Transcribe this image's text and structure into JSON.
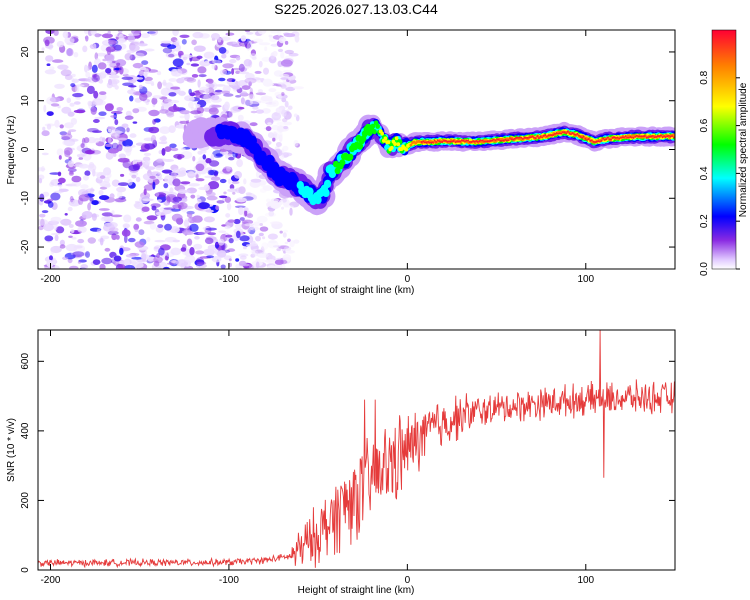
{
  "title": "S225.2026.027.13.03.C44",
  "colors": {
    "snr_line": "#e53b3b",
    "axis": "#000000",
    "background": "#ffffff"
  },
  "chart_data": [
    {
      "type": "heatmap",
      "name": "spectrogram",
      "xlabel": "Height of straight line (km)",
      "ylabel": "Frequency (Hz)",
      "xlim": [
        -207,
        150
      ],
      "ylim": [
        -24.5,
        24.5
      ],
      "x_ticks": [
        -200,
        -100,
        0,
        100
      ],
      "y_ticks": [
        -20,
        -10,
        0,
        10,
        20
      ],
      "colorbar": {
        "label": "Normalized spectral amplitude",
        "range": [
          0,
          1
        ],
        "ticks": [
          "0.0",
          "0.2",
          "0.4",
          "0.6",
          "0.8"
        ],
        "tick_values": [
          0,
          0.2,
          0.4,
          0.6,
          0.8
        ]
      },
      "noise_region_km": [
        -207,
        -65
      ],
      "ridge": [
        {
          "x": -100,
          "y": 3.2
        },
        {
          "x": -90,
          "y": 2.0
        },
        {
          "x": -80,
          "y": -2.0
        },
        {
          "x": -72,
          "y": -5.5
        },
        {
          "x": -65,
          "y": -6.5
        },
        {
          "x": -58,
          "y": -8.0
        },
        {
          "x": -50,
          "y": -10.5
        },
        {
          "x": -46,
          "y": -8.5
        },
        {
          "x": -44,
          "y": -5.0
        },
        {
          "x": -38,
          "y": -3.0
        },
        {
          "x": -32,
          "y": -0.5
        },
        {
          "x": -28,
          "y": 1.0
        },
        {
          "x": -22,
          "y": 3.8
        },
        {
          "x": -18,
          "y": 4.8
        },
        {
          "x": -14,
          "y": 2.5
        },
        {
          "x": -10,
          "y": 0.5
        },
        {
          "x": -6,
          "y": 1.5
        },
        {
          "x": -2,
          "y": 0.2
        },
        {
          "x": 4,
          "y": 1.5
        },
        {
          "x": 20,
          "y": 1.7
        },
        {
          "x": 40,
          "y": 1.6
        },
        {
          "x": 60,
          "y": 2.2
        },
        {
          "x": 75,
          "y": 2.6
        },
        {
          "x": 88,
          "y": 3.6
        },
        {
          "x": 95,
          "y": 3.0
        },
        {
          "x": 105,
          "y": 1.6
        },
        {
          "x": 112,
          "y": 2.2
        },
        {
          "x": 125,
          "y": 2.6
        },
        {
          "x": 150,
          "y": 2.7
        }
      ]
    },
    {
      "type": "line",
      "name": "snr",
      "xlabel": "Height of straight line (km)",
      "ylabel": "SNR (10 * v/v)",
      "xlim": [
        -207,
        150
      ],
      "ylim": [
        0,
        690
      ],
      "x_ticks": [
        -200,
        -100,
        0,
        100
      ],
      "y_ticks": [
        0,
        200,
        400,
        600
      ],
      "series": [
        {
          "name": "SNR",
          "trend": [
            {
              "x": -207,
              "y": 20
            },
            {
              "x": -100,
              "y": 22
            },
            {
              "x": -80,
              "y": 28
            },
            {
              "x": -65,
              "y": 40
            },
            {
              "x": -55,
              "y": 80
            },
            {
              "x": -45,
              "y": 130
            },
            {
              "x": -35,
              "y": 190
            },
            {
              "x": -25,
              "y": 230
            },
            {
              "x": -15,
              "y": 280
            },
            {
              "x": -5,
              "y": 320
            },
            {
              "x": 5,
              "y": 370
            },
            {
              "x": 15,
              "y": 410
            },
            {
              "x": 30,
              "y": 445
            },
            {
              "x": 50,
              "y": 465
            },
            {
              "x": 75,
              "y": 480
            },
            {
              "x": 100,
              "y": 490
            },
            {
              "x": 125,
              "y": 495
            },
            {
              "x": 150,
              "y": 495
            }
          ],
          "spikes": [
            {
              "x": -24,
              "y": 490
            },
            {
              "x": -18,
              "y": 490
            },
            {
              "x": -8,
              "y": 370
            },
            {
              "x": 108,
              "y": 690
            },
            {
              "x": 110,
              "y": 265
            }
          ]
        }
      ]
    }
  ]
}
